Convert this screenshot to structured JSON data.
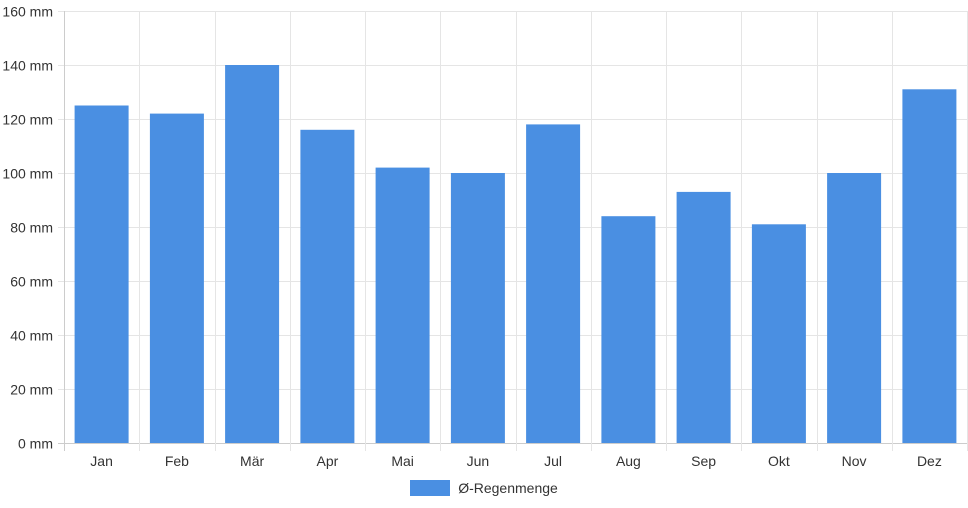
{
  "chart_data": {
    "type": "bar",
    "categories": [
      "Jan",
      "Feb",
      "Mär",
      "Apr",
      "Mai",
      "Jun",
      "Jul",
      "Aug",
      "Sep",
      "Okt",
      "Nov",
      "Dez"
    ],
    "series": [
      {
        "name": "Ø-Regenmenge",
        "values": [
          125,
          122,
          140,
          116,
          102,
          100,
          118,
          84,
          93,
          81,
          100,
          131
        ]
      }
    ],
    "yticks": [
      0,
      20,
      40,
      60,
      80,
      100,
      120,
      140,
      160
    ],
    "ytick_suffix": " mm",
    "ylim": [
      0,
      160
    ],
    "grid": true,
    "legend_position": "bottom",
    "colors": {
      "bar": "#4a8fe2",
      "grid": "#e5e5e5",
      "axis": "#cccccc",
      "text": "#333333"
    }
  }
}
